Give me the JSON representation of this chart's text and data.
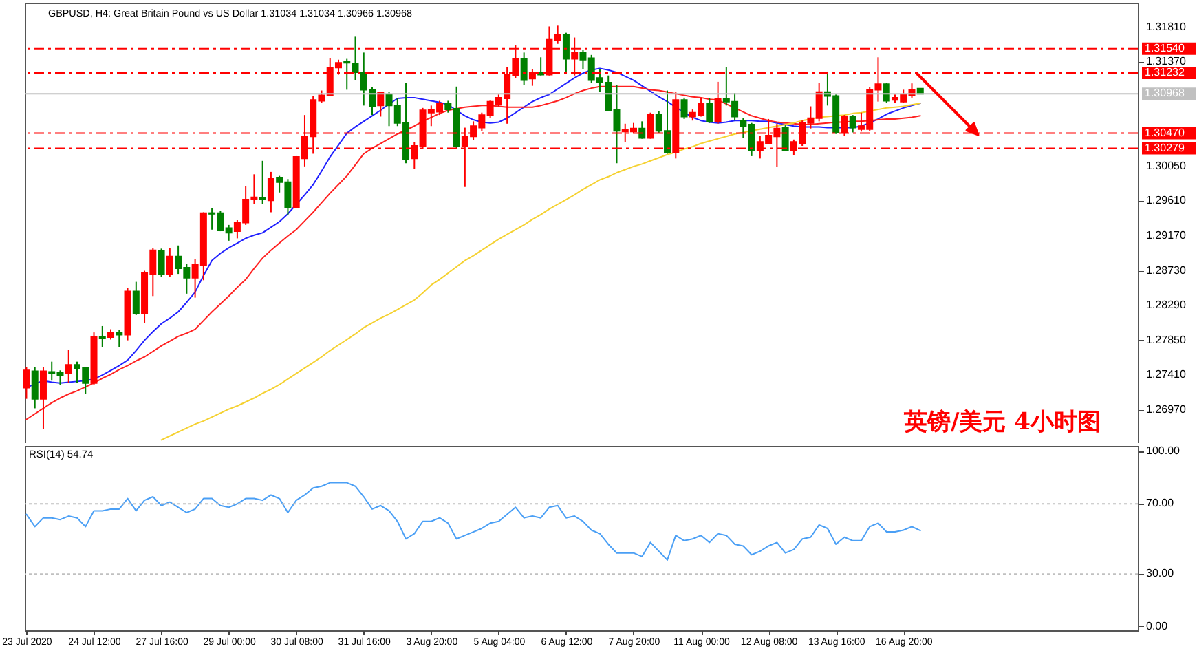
{
  "chart_data": [
    {
      "type": "candlestick",
      "title": "GBPUSD, H4: Great Britain Pound vs US Dollar 1.31034 1.31034 1.30966 1.30968",
      "annotations": [
        "英镑/美元  4小时图"
      ],
      "tick_labels": "y",
      "categories": [
        null,
        null,
        null,
        null,
        null,
        null,
        null,
        null,
        null,
        null,
        null,
        null,
        null,
        null,
        null,
        null,
        null,
        null,
        null,
        null,
        null,
        null,
        null,
        null,
        null,
        null,
        null,
        null,
        null,
        null,
        null,
        null,
        null,
        null,
        null,
        null,
        null,
        null,
        null,
        null,
        null,
        null,
        null,
        null,
        null,
        null,
        null,
        null,
        null,
        null,
        null,
        null,
        null,
        null,
        null,
        null,
        null,
        null,
        null,
        null,
        null,
        null,
        null,
        null,
        null,
        null,
        null,
        null,
        null,
        null,
        null,
        null,
        null,
        null,
        null,
        null,
        null,
        null,
        null,
        null,
        null,
        null,
        null,
        null,
        null,
        null,
        null,
        null,
        null,
        null,
        null,
        null,
        null,
        null,
        null,
        null,
        null,
        null,
        null,
        null,
        null,
        null,
        null,
        null,
        null,
        null,
        null
      ],
      "ylim": [
        1.2655,
        1.3212
      ],
      "yticks": [
        {
          "value": 1.3181,
          "label": "1.31810"
        },
        {
          "value": 1.3137,
          "label": "1.31370"
        },
        {
          "value": 1.3005,
          "label": "1.30050"
        },
        {
          "value": 1.2961,
          "label": "1.29610"
        },
        {
          "value": 1.2917,
          "label": "1.29170"
        },
        {
          "value": 1.2873,
          "label": "1.28730"
        },
        {
          "value": 1.2829,
          "label": "1.28290"
        },
        {
          "value": 1.2785,
          "label": "1.27850"
        },
        {
          "value": 1.2741,
          "label": "1.27410"
        },
        {
          "value": 1.2697,
          "label": "1.26970"
        }
      ],
      "ohlc": [
        [
          1.2725,
          1.2751,
          1.2711,
          1.2747
        ],
        [
          1.2746,
          1.2751,
          1.2699,
          1.2711
        ],
        [
          1.2711,
          1.2751,
          1.2673,
          1.2746
        ],
        [
          1.2745,
          1.2758,
          1.2734,
          1.2743
        ],
        [
          1.2744,
          1.2747,
          1.2729,
          1.2741
        ],
        [
          1.2743,
          1.2773,
          1.2731,
          1.2754
        ],
        [
          1.2754,
          1.2758,
          1.2731,
          1.2749
        ],
        [
          1.275,
          1.2751,
          1.2717,
          1.2731
        ],
        [
          1.2731,
          1.2795,
          1.2729,
          1.2789
        ],
        [
          1.279,
          1.2803,
          1.2776,
          1.2788
        ],
        [
          1.2789,
          1.2799,
          1.2786,
          1.2795
        ],
        [
          1.2795,
          1.2798,
          1.2776,
          1.2792
        ],
        [
          1.2792,
          1.2851,
          1.2785,
          1.2847
        ],
        [
          1.2847,
          1.2859,
          1.2817,
          1.2819
        ],
        [
          1.2819,
          1.2873,
          1.2807,
          1.287
        ],
        [
          1.2869,
          1.2902,
          1.2841,
          1.2899
        ],
        [
          1.2898,
          1.2901,
          1.2865,
          1.2869
        ],
        [
          1.2869,
          1.2902,
          1.2865,
          1.2891
        ],
        [
          1.2891,
          1.2905,
          1.2869,
          1.2876
        ],
        [
          1.2877,
          1.2882,
          1.2844,
          1.2864
        ],
        [
          1.2864,
          1.2888,
          1.2839,
          1.2881
        ],
        [
          1.288,
          1.2947,
          1.2861,
          1.2946
        ],
        [
          1.2946,
          1.2952,
          1.2925,
          1.2945
        ],
        [
          1.2946,
          1.2949,
          1.2923,
          1.2924
        ],
        [
          1.2927,
          1.2931,
          1.2911,
          1.2921
        ],
        [
          1.2923,
          1.2937,
          1.2914,
          1.2934
        ],
        [
          1.2934,
          1.298,
          1.2931,
          1.2963
        ],
        [
          1.2963,
          1.2995,
          1.2957,
          1.2966
        ],
        [
          1.2965,
          1.3012,
          1.2957,
          1.2963
        ],
        [
          1.2962,
          1.2998,
          1.2947,
          1.299
        ],
        [
          1.2991,
          1.2993,
          1.2972,
          1.2985
        ],
        [
          1.2985,
          1.2989,
          1.2944,
          1.2953
        ],
        [
          1.2953,
          1.3018,
          1.2952,
          1.3017
        ],
        [
          1.3015,
          1.307,
          1.3005,
          1.3043
        ],
        [
          1.3043,
          1.3094,
          1.3021,
          1.3089
        ],
        [
          1.3088,
          1.3101,
          1.3085,
          1.3095
        ],
        [
          1.3095,
          1.3142,
          1.3094,
          1.313
        ],
        [
          1.313,
          1.314,
          1.3121,
          1.3136
        ],
        [
          1.3138,
          1.3141,
          1.3102,
          1.3136
        ],
        [
          1.3135,
          1.3169,
          1.3114,
          1.3124
        ],
        [
          1.3124,
          1.3149,
          1.3082,
          1.3102
        ],
        [
          1.3102,
          1.3105,
          1.307,
          1.3081
        ],
        [
          1.3082,
          1.3099,
          1.3068,
          1.3098
        ],
        [
          1.3096,
          1.3099,
          1.3056,
          1.3082
        ],
        [
          1.3082,
          1.3091,
          1.3056,
          1.306
        ],
        [
          1.306,
          1.3111,
          1.3009,
          1.3014
        ],
        [
          1.3015,
          1.3036,
          1.3002,
          1.3031
        ],
        [
          1.303,
          1.3079,
          1.3027,
          1.3076
        ],
        [
          1.3073,
          1.3082,
          1.3056,
          1.3077
        ],
        [
          1.3074,
          1.3088,
          1.307,
          1.3085
        ],
        [
          1.3085,
          1.3088,
          1.3073,
          1.3077
        ],
        [
          1.3078,
          1.3106,
          1.3027,
          1.303
        ],
        [
          1.303,
          1.3054,
          1.2979,
          1.3043
        ],
        [
          1.3043,
          1.3062,
          1.3038,
          1.3056
        ],
        [
          1.3054,
          1.3073,
          1.305,
          1.307
        ],
        [
          1.307,
          1.3089,
          1.3066,
          1.3087
        ],
        [
          1.3083,
          1.3096,
          1.3081,
          1.3092
        ],
        [
          1.3091,
          1.3131,
          1.3059,
          1.3121
        ],
        [
          1.312,
          1.3158,
          1.3117,
          1.3141
        ],
        [
          1.3141,
          1.3149,
          1.3108,
          1.3114
        ],
        [
          1.3116,
          1.3128,
          1.3107,
          1.3124
        ],
        [
          1.3124,
          1.3143,
          1.312,
          1.3121
        ],
        [
          1.3121,
          1.3182,
          1.312,
          1.3166
        ],
        [
          1.3165,
          1.3183,
          1.316,
          1.3172
        ],
        [
          1.3172,
          1.3174,
          1.3125,
          1.3141
        ],
        [
          1.3141,
          1.3168,
          1.312,
          1.3149
        ],
        [
          1.3149,
          1.3152,
          1.3128,
          1.314
        ],
        [
          1.3142,
          1.3146,
          1.3111,
          1.3114
        ],
        [
          1.3117,
          1.3128,
          1.3099,
          1.3111
        ],
        [
          1.3111,
          1.312,
          1.3075,
          1.3076
        ],
        [
          1.3077,
          1.3108,
          1.3009,
          1.305
        ],
        [
          1.3049,
          1.3059,
          1.3036,
          1.3051
        ],
        [
          1.3049,
          1.306,
          1.3047,
          1.3053
        ],
        [
          1.3053,
          1.3062,
          1.304,
          1.3041
        ],
        [
          1.3041,
          1.3073,
          1.304,
          1.3071
        ],
        [
          1.3071,
          1.3075,
          1.3047,
          1.305
        ],
        [
          1.305,
          1.3101,
          1.3021,
          1.3023
        ],
        [
          1.3023,
          1.3099,
          1.3015,
          1.3089
        ],
        [
          1.3089,
          1.3092,
          1.3065,
          1.3068
        ],
        [
          1.3068,
          1.3077,
          1.3063,
          1.3073
        ],
        [
          1.307,
          1.3092,
          1.3068,
          1.3085
        ],
        [
          1.3085,
          1.3091,
          1.306,
          1.3062
        ],
        [
          1.3062,
          1.3112,
          1.3059,
          1.3091
        ],
        [
          1.3091,
          1.3131,
          1.3082,
          1.3087
        ],
        [
          1.3087,
          1.3098,
          1.3063,
          1.3068
        ],
        [
          1.3063,
          1.3066,
          1.3041,
          1.3056
        ],
        [
          1.3058,
          1.306,
          1.3018,
          1.3025
        ],
        [
          1.3025,
          1.3044,
          1.3015,
          1.3036
        ],
        [
          1.3034,
          1.3065,
          1.3033,
          1.3044
        ],
        [
          1.3043,
          1.3059,
          1.3004,
          1.3053
        ],
        [
          1.3054,
          1.3057,
          1.3024,
          1.3025
        ],
        [
          1.3025,
          1.3039,
          1.3019,
          1.3036
        ],
        [
          1.3034,
          1.3063,
          1.3031,
          1.306
        ],
        [
          1.306,
          1.3081,
          1.3053,
          1.3066
        ],
        [
          1.3066,
          1.3111,
          1.3062,
          1.3099
        ],
        [
          1.3099,
          1.3125,
          1.3082,
          1.3094
        ],
        [
          1.3094,
          1.3096,
          1.3046,
          1.3048
        ],
        [
          1.3048,
          1.307,
          1.3044,
          1.3068
        ],
        [
          1.3068,
          1.307,
          1.3048,
          1.3054
        ],
        [
          1.3052,
          1.3073,
          1.3049,
          1.3056
        ],
        [
          1.3052,
          1.3105,
          1.305,
          1.3102
        ],
        [
          1.3102,
          1.3143,
          1.3087,
          1.3109
        ],
        [
          1.3109,
          1.3111,
          1.3085,
          1.3088
        ],
        [
          1.3089,
          1.3096,
          1.3085,
          1.3092
        ],
        [
          1.3087,
          1.3102,
          1.3085,
          1.3096
        ],
        [
          1.3095,
          1.311,
          1.3092,
          1.3102
        ],
        [
          1.31034,
          1.31034,
          1.30966,
          1.30968
        ]
      ],
      "colors": [
        "#ff0000",
        "#008000",
        "#ff0000",
        "#008000",
        "#008000",
        "#ff0000",
        "#008000",
        "#008000",
        "#ff0000",
        "#008000",
        "#ff0000",
        "#008000",
        "#ff0000",
        "#008000",
        "#ff0000",
        "#ff0000",
        "#008000",
        "#ff0000",
        "#008000",
        "#008000",
        "#ff0000",
        "#ff0000",
        "#008000",
        "#008000",
        "#008000",
        "#ff0000",
        "#ff0000",
        "#ff0000",
        "#008000",
        "#ff0000",
        "#008000",
        "#008000",
        "#ff0000",
        "#ff0000",
        "#ff0000",
        "#ff0000",
        "#ff0000",
        "#ff0000",
        "#008000",
        "#008000",
        "#008000",
        "#008000",
        "#ff0000",
        "#008000",
        "#008000",
        "#008000",
        "#ff0000",
        "#ff0000",
        "#ff0000",
        "#ff0000",
        "#008000",
        "#008000",
        "#ff0000",
        "#ff0000",
        "#ff0000",
        "#ff0000",
        "#ff0000",
        "#ff0000",
        "#ff0000",
        "#008000",
        "#ff0000",
        "#008000",
        "#ff0000",
        "#ff0000",
        "#008000",
        "#ff0000",
        "#008000",
        "#008000",
        "#008000",
        "#008000",
        "#008000",
        "#ff0000",
        "#ff0000",
        "#008000",
        "#ff0000",
        "#008000",
        "#008000",
        "#ff0000",
        "#008000",
        "#ff0000",
        "#ff0000",
        "#008000",
        "#ff0000",
        "#008000",
        "#008000",
        "#008000",
        "#008000",
        "#ff0000",
        "#ff0000",
        "#ff0000",
        "#008000",
        "#ff0000",
        "#ff0000",
        "#ff0000",
        "#ff0000",
        "#008000",
        "#008000",
        "#ff0000",
        "#008000",
        "#ff0000",
        "#ff0000",
        "#ff0000",
        "#008000",
        "#ff0000",
        "#ff0000",
        "#ff0000",
        "#008000"
      ],
      "series": [
        {
          "type": "line",
          "color": "#2020ff",
          "values": [
            1.2725,
            1.273,
            1.2734,
            1.2732,
            1.2731,
            1.2732,
            1.2733,
            1.2734,
            1.2736,
            1.2741,
            1.2747,
            1.2753,
            1.276,
            1.2772,
            1.2785,
            1.2796,
            1.2806,
            1.2813,
            1.2821,
            1.2833,
            1.2846,
            1.2867,
            1.2886,
            1.2895,
            1.2902,
            1.2908,
            1.2914,
            1.2918,
            1.2921,
            1.2928,
            1.2935,
            1.2945,
            1.2957,
            1.2969,
            1.2982,
            1.2999,
            1.3017,
            1.3032,
            1.3047,
            1.3055,
            1.3062,
            1.3069,
            1.3076,
            1.3084,
            1.3091,
            1.3092,
            1.3092,
            1.309,
            1.3088,
            1.3086,
            1.3083,
            1.3076,
            1.3069,
            1.3064,
            1.3061,
            1.306,
            1.3061,
            1.3066,
            1.3073,
            1.308,
            1.3087,
            1.3092,
            1.3096,
            1.3103,
            1.311,
            1.3117,
            1.3123,
            1.3127,
            1.3129,
            1.3127,
            1.3124,
            1.3119,
            1.3114,
            1.3107,
            1.31,
            1.3093,
            1.3087,
            1.308,
            1.3073,
            1.3067,
            1.3063,
            1.3061,
            1.306,
            1.3061,
            1.3063,
            1.3063,
            1.3063,
            1.3062,
            1.3062,
            1.306,
            1.3058,
            1.3056,
            1.3055,
            1.3055,
            1.3055,
            1.3054,
            1.3054,
            1.3054,
            1.3054,
            1.3056,
            1.306,
            1.3065,
            1.3071,
            1.3075,
            1.3079,
            1.3082,
            1.3085
          ]
        },
        {
          "type": "line",
          "color": "#ff2020",
          "values": [
            1.2685,
            1.2692,
            1.2699,
            1.2706,
            1.2712,
            1.2717,
            1.2721,
            1.2726,
            1.2731,
            1.2737,
            1.2742,
            1.2748,
            1.2753,
            1.2759,
            1.2764,
            1.2771,
            1.2778,
            1.2784,
            1.279,
            1.2794,
            1.2799,
            1.281,
            1.2821,
            1.2831,
            1.2841,
            1.2852,
            1.2862,
            1.2876,
            1.2889,
            1.2899,
            1.2908,
            1.2917,
            1.2925,
            1.2936,
            1.2947,
            1.2959,
            1.2971,
            1.2982,
            1.2993,
            1.3007,
            1.3021,
            1.3028,
            1.3034,
            1.304,
            1.3046,
            1.3051,
            1.3056,
            1.3062,
            1.3067,
            1.3072,
            1.3076,
            1.3078,
            1.308,
            1.3081,
            1.3082,
            1.3082,
            1.3081,
            1.308,
            1.308,
            1.308,
            1.308,
            1.3082,
            1.3085,
            1.3088,
            1.3092,
            1.3097,
            1.3101,
            1.3104,
            1.3106,
            1.3106,
            1.3106,
            1.3106,
            1.3106,
            1.3104,
            1.3102,
            1.3101,
            1.3099,
            1.3097,
            1.3095,
            1.3093,
            1.3092,
            1.309,
            1.3089,
            1.3084,
            1.3079,
            1.3074,
            1.3069,
            1.3066,
            1.3063,
            1.3061,
            1.306,
            1.3059,
            1.3058,
            1.3058,
            1.3059,
            1.306,
            1.3061,
            1.3061,
            1.3062,
            1.3062,
            1.3063,
            1.3064,
            1.3065,
            1.3065,
            1.3066,
            1.3067,
            1.3069
          ]
        },
        {
          "type": "line",
          "color": "#f5d130",
          "values": [
            null,
            null,
            null,
            null,
            null,
            null,
            null,
            null,
            null,
            null,
            null,
            null,
            null,
            null,
            null,
            null,
            1.2659,
            1.2664,
            1.2669,
            1.2674,
            1.2679,
            1.2683,
            1.2688,
            1.2693,
            1.2698,
            1.2702,
            1.2707,
            1.2712,
            1.2718,
            1.2723,
            1.2729,
            1.2736,
            1.2743,
            1.275,
            1.2757,
            1.2764,
            1.2772,
            1.2779,
            1.2786,
            1.2793,
            1.2801,
            1.2807,
            1.2813,
            1.2818,
            1.2824,
            1.283,
            1.2836,
            1.2845,
            1.2855,
            1.2862,
            1.287,
            1.2878,
            1.2886,
            1.2892,
            1.2899,
            1.2906,
            1.2913,
            1.2919,
            1.2925,
            1.2931,
            1.2938,
            1.2944,
            1.2951,
            1.2957,
            1.2963,
            1.2969,
            1.2976,
            1.2982,
            1.2988,
            1.2992,
            1.2997,
            1.3001,
            1.3005,
            1.3008,
            1.3012,
            1.3016,
            1.302,
            1.3023,
            1.3027,
            1.303,
            1.3034,
            1.3037,
            1.304,
            1.3043,
            1.3046,
            1.3048,
            1.305,
            1.3052,
            1.3054,
            1.3056,
            1.3058,
            1.306,
            1.3063,
            1.3065,
            1.3067,
            1.3068,
            1.3069,
            1.307,
            1.3072,
            1.3073,
            1.3075,
            1.3077,
            1.3079,
            1.308,
            1.3081,
            1.3083,
            1.3085
          ]
        }
      ],
      "ref_lines": [
        {
          "axis": "y",
          "value": 1.3154,
          "label": "1.31540",
          "color": "#ff0000",
          "line_style": "dashed"
        },
        {
          "axis": "y",
          "value": 1.31232,
          "label": "1.31232",
          "color": "#ff0000",
          "line_style": "dashed"
        },
        {
          "axis": "y",
          "value": 1.30968,
          "label": "1.30968",
          "color": "#c0c0c0",
          "line_style": "solid"
        },
        {
          "axis": "y",
          "value": 1.3047,
          "label": "1.30470",
          "color": "#ff0000",
          "line_style": "dashed"
        },
        {
          "axis": "y",
          "value": 1.30279,
          "label": "1.30279",
          "color": "#ff0000",
          "line_style": "dashed"
        }
      ]
    },
    {
      "type": "line",
      "title": "RSI(14) 54.74",
      "ylim": [
        -2,
        103
      ],
      "categories": [
        "23 Jul 2020",
        null,
        null,
        null,
        null,
        null,
        null,
        null,
        "24 Jul 12:00",
        null,
        null,
        null,
        null,
        null,
        null,
        null,
        "27 Jul 16:00",
        null,
        null,
        null,
        null,
        null,
        null,
        null,
        "29 Jul 00:00",
        null,
        null,
        null,
        null,
        null,
        null,
        null,
        "30 Jul 08:00",
        null,
        null,
        null,
        null,
        null,
        null,
        null,
        "31 Jul 16:00",
        null,
        null,
        null,
        null,
        null,
        null,
        null,
        "3 Aug 20:00",
        null,
        null,
        null,
        null,
        null,
        null,
        null,
        "5 Aug 04:00",
        null,
        null,
        null,
        null,
        null,
        null,
        null,
        "6 Aug 12:00",
        null,
        null,
        null,
        null,
        null,
        null,
        null,
        "7 Aug 20:00",
        null,
        null,
        null,
        null,
        null,
        null,
        null,
        "11 Aug 00:00",
        null,
        null,
        null,
        null,
        null,
        null,
        null,
        "12 Aug 08:00",
        null,
        null,
        null,
        null,
        null,
        null,
        null,
        "13 Aug 16:00",
        null,
        null,
        null,
        null,
        null,
        null,
        null,
        "16 Aug 20:00",
        null,
        null
      ],
      "yticks": [
        {
          "value": 100,
          "label": "100.00"
        },
        {
          "value": 70,
          "label": "70.00"
        },
        {
          "value": 30,
          "label": "30.00"
        },
        {
          "value": 0,
          "label": "0.00"
        }
      ],
      "series": [
        {
          "color": "#4a9ff5",
          "values": [
            64,
            57,
            62,
            62,
            61,
            63,
            62,
            57,
            66,
            66,
            67,
            67,
            73,
            66,
            72,
            74,
            69,
            71,
            68,
            65,
            67,
            73,
            73,
            69,
            68,
            70,
            73,
            73,
            72,
            75,
            73,
            65,
            72,
            75,
            79,
            80,
            82,
            82,
            82,
            80,
            74,
            67,
            69,
            66,
            60,
            50,
            53,
            60,
            60,
            62,
            59,
            50,
            52,
            54,
            56,
            59,
            60,
            64,
            68,
            62,
            63,
            62,
            68,
            69,
            62,
            63,
            60,
            55,
            53,
            47,
            42,
            42,
            42,
            40,
            48,
            43,
            38,
            52,
            49,
            50,
            52,
            48,
            53,
            52,
            47,
            46,
            41,
            43,
            46,
            48,
            42,
            44,
            50,
            51,
            58,
            56,
            47,
            51,
            49,
            49,
            57,
            59,
            54,
            54,
            55,
            57,
            54.74
          ]
        }
      ],
      "ref_lines": [
        {
          "axis": "y",
          "value": 70,
          "color": "#c0c0c0",
          "line_style": "dotted"
        },
        {
          "axis": "y",
          "value": 30,
          "color": "#c0c0c0",
          "line_style": "dotted"
        }
      ]
    }
  ]
}
